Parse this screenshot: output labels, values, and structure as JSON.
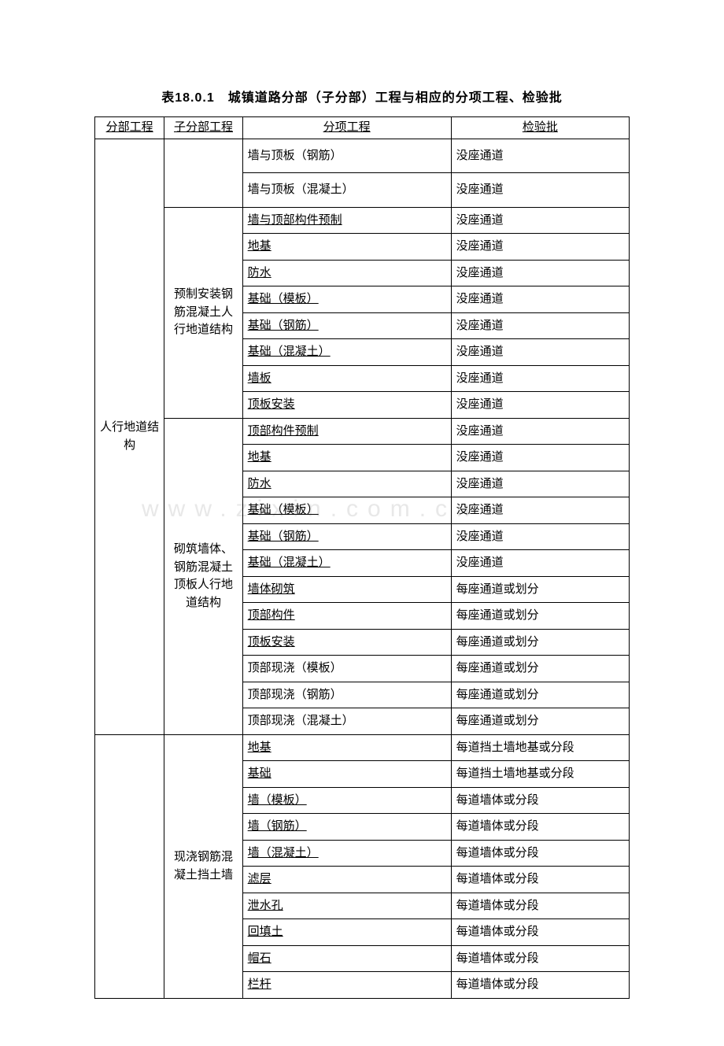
{
  "title": "表18.0.1　城镇道路分部（子分部）工程与相应的分项工程、检验批",
  "watermark_text": "www.zixin.com.cn",
  "headers": {
    "col1": "分部工程",
    "col2": "子分部工程",
    "col3": "分项工程",
    "col4": "检验批"
  },
  "groups": [
    {
      "fenbu": "人行地道结构",
      "fenbu_rowspan": 22,
      "subgroups": [
        {
          "zifenbu": "",
          "zifenbu_rowspan": 2,
          "rows": [
            {
              "c3": "墙与顶板（钢筋）",
              "c4": "没座通道",
              "c3_underline": false,
              "c4_underline": false,
              "tall": true
            },
            {
              "c3": "墙与顶板（混凝土）",
              "c4": "没座通道",
              "c3_underline": false,
              "c4_underline": false,
              "tall": true
            }
          ]
        },
        {
          "zifenbu": "预制安装钢筋混凝土人行地道结构",
          "zifenbu_rowspan": 8,
          "rows": [
            {
              "c3": "墙与顶部构件预制",
              "c4": "没座通道",
              "c3_underline": true,
              "c4_underline": false
            },
            {
              "c3": "地基",
              "c4": "没座通道",
              "c3_underline": true,
              "c4_underline": false
            },
            {
              "c3": "防水",
              "c4": "没座通道",
              "c3_underline": true,
              "c4_underline": false
            },
            {
              "c3": "基础（模板）",
              "c4": "没座通道",
              "c3_underline": true,
              "c4_underline": false
            },
            {
              "c3": "基础（钢筋）",
              "c4": "没座通道",
              "c3_underline": true,
              "c4_underline": false
            },
            {
              "c3": "基础（混凝土）",
              "c4": "没座通道",
              "c3_underline": true,
              "c4_underline": false
            },
            {
              "c3": "墙板",
              "c4": "没座通道",
              "c3_underline": true,
              "c4_underline": false
            },
            {
              "c3": "顶板安装",
              "c4": "没座通道",
              "c3_underline": true,
              "c4_underline": false
            }
          ]
        },
        {
          "zifenbu": "砌筑墙体、钢筋混凝土顶板人行地道结构",
          "zifenbu_rowspan": 12,
          "rows": [
            {
              "c3": "顶部构件预制",
              "c4": "没座通道",
              "c3_underline": true,
              "c4_underline": false
            },
            {
              "c3": "地基",
              "c4": "没座通道",
              "c3_underline": true,
              "c4_underline": false
            },
            {
              "c3": "防水",
              "c4": "没座通道",
              "c3_underline": true,
              "c4_underline": false
            },
            {
              "c3": "基础（模板）",
              "c4": "没座通道",
              "c3_underline": true,
              "c4_underline": false
            },
            {
              "c3": "基础（钢筋）",
              "c4": "没座通道",
              "c3_underline": true,
              "c4_underline": false
            },
            {
              "c3": "基础（混凝土）",
              "c4": "没座通道",
              "c3_underline": true,
              "c4_underline": false
            },
            {
              "c3": "墙体砌筑",
              "c4": "每座通道或划分",
              "c3_underline": true,
              "c4_underline": false
            },
            {
              "c3": "顶部构件",
              "c4": "每座通道或划分",
              "c3_underline": true,
              "c4_underline": false
            },
            {
              "c3": "顶板安装",
              "c4": "每座通道或划分",
              "c3_underline": true,
              "c4_underline": false
            },
            {
              "c3": "顶部现浇（模板）",
              "c4": "每座通道或划分",
              "c3_underline": false,
              "c4_underline": false,
              "tall": false
            },
            {
              "c3": "顶部现浇（钢筋）",
              "c4": "每座通道或划分",
              "c3_underline": false,
              "c4_underline": false,
              "tall": false
            },
            {
              "c3": "顶部现浇（混凝土）",
              "c4": "每座通道或划分",
              "c3_underline": false,
              "c4_underline": false,
              "tall": false
            }
          ]
        }
      ]
    },
    {
      "fenbu": "",
      "fenbu_rowspan": 10,
      "subgroups": [
        {
          "zifenbu": "现浇钢筋混凝土挡土墙",
          "zifenbu_rowspan": 10,
          "rows": [
            {
              "c3": "地基",
              "c4": "每道挡土墙地基或分段",
              "c3_underline": true,
              "c4_underline": false
            },
            {
              "c3": "基础",
              "c4": "每道挡土墙地基或分段",
              "c3_underline": true,
              "c4_underline": false
            },
            {
              "c3": "墙（模板）",
              "c4": "每道墙体或分段",
              "c3_underline": true,
              "c4_underline": false
            },
            {
              "c3": "墙（钢筋）",
              "c4": "每道墙体或分段",
              "c3_underline": true,
              "c4_underline": false
            },
            {
              "c3": "墙（混凝土）",
              "c4": "每道墙体或分段",
              "c3_underline": true,
              "c4_underline": false
            },
            {
              "c3": "滤层",
              "c4": "每道墙体或分段",
              "c3_underline": true,
              "c4_underline": false
            },
            {
              "c3": "泄水孔",
              "c4": "每道墙体或分段",
              "c3_underline": true,
              "c4_underline": false
            },
            {
              "c3": "回填土",
              "c4": "每道墙体或分段",
              "c3_underline": true,
              "c4_underline": false
            },
            {
              "c3": "帽石",
              "c4": "每道墙体或分段",
              "c3_underline": true,
              "c4_underline": false
            },
            {
              "c3": "栏杆",
              "c4": "每道墙体或分段",
              "c3_underline": true,
              "c4_underline": false
            }
          ]
        }
      ]
    }
  ],
  "colors": {
    "text": "#000000",
    "border": "#000000",
    "background": "#ffffff",
    "watermark": "#e8e8e8"
  }
}
